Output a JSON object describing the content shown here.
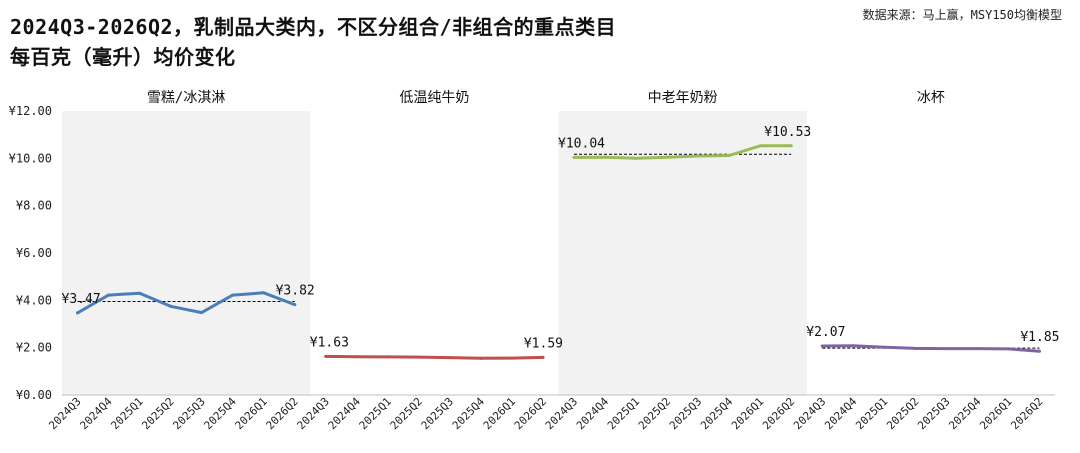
{
  "title_line1": "2024Q3-2026Q2，乳制品大类内，不区分组合/非组合的重点类目",
  "title_line2": "每百克（毫升）均价变化",
  "source": "数据来源：马上赢，MSY150均衡模型",
  "colors": {
    "shade": "#f2f2f2",
    "axis": "#bfbfbf",
    "ref": "#000000"
  },
  "chart_data": {
    "type": "line",
    "quarters": [
      "2024Q3",
      "2024Q4",
      "2025Q1",
      "2025Q2",
      "2025Q3",
      "2025Q4",
      "2026Q1",
      "2026Q2"
    ],
    "ylim": [
      0,
      12
    ],
    "yticks": [
      "¥0.00",
      "¥2.00",
      "¥4.00",
      "¥6.00",
      "¥8.00",
      "¥10.00",
      "¥12.00"
    ],
    "panels": [
      {
        "name": "雪糕/冰淇淋",
        "color": "#4a7ebb",
        "shaded": true,
        "values": [
          3.47,
          4.22,
          4.3,
          3.75,
          3.48,
          4.22,
          4.32,
          3.82
        ],
        "avg": 3.95,
        "first_label": "¥3.47",
        "last_label": "¥3.82"
      },
      {
        "name": "低温纯牛奶",
        "color": "#c0504d",
        "shaded": false,
        "values": [
          1.63,
          1.62,
          1.61,
          1.6,
          1.58,
          1.55,
          1.56,
          1.59
        ],
        "avg": 1.59,
        "first_label": "¥1.63",
        "last_label": "¥1.59"
      },
      {
        "name": "中老年奶粉",
        "color": "#9bbb59",
        "shaded": true,
        "values": [
          10.04,
          10.05,
          10.0,
          10.05,
          10.1,
          10.12,
          10.53,
          10.53
        ],
        "avg": 10.17,
        "first_label": "¥10.04",
        "last_label": "¥10.53"
      },
      {
        "name": "冰杯",
        "color": "#8064a2",
        "shaded": false,
        "values": [
          2.07,
          2.08,
          2.02,
          1.97,
          1.96,
          1.96,
          1.95,
          1.85
        ],
        "avg": 1.98,
        "first_label": "¥2.07",
        "last_label": "¥1.85"
      }
    ]
  }
}
